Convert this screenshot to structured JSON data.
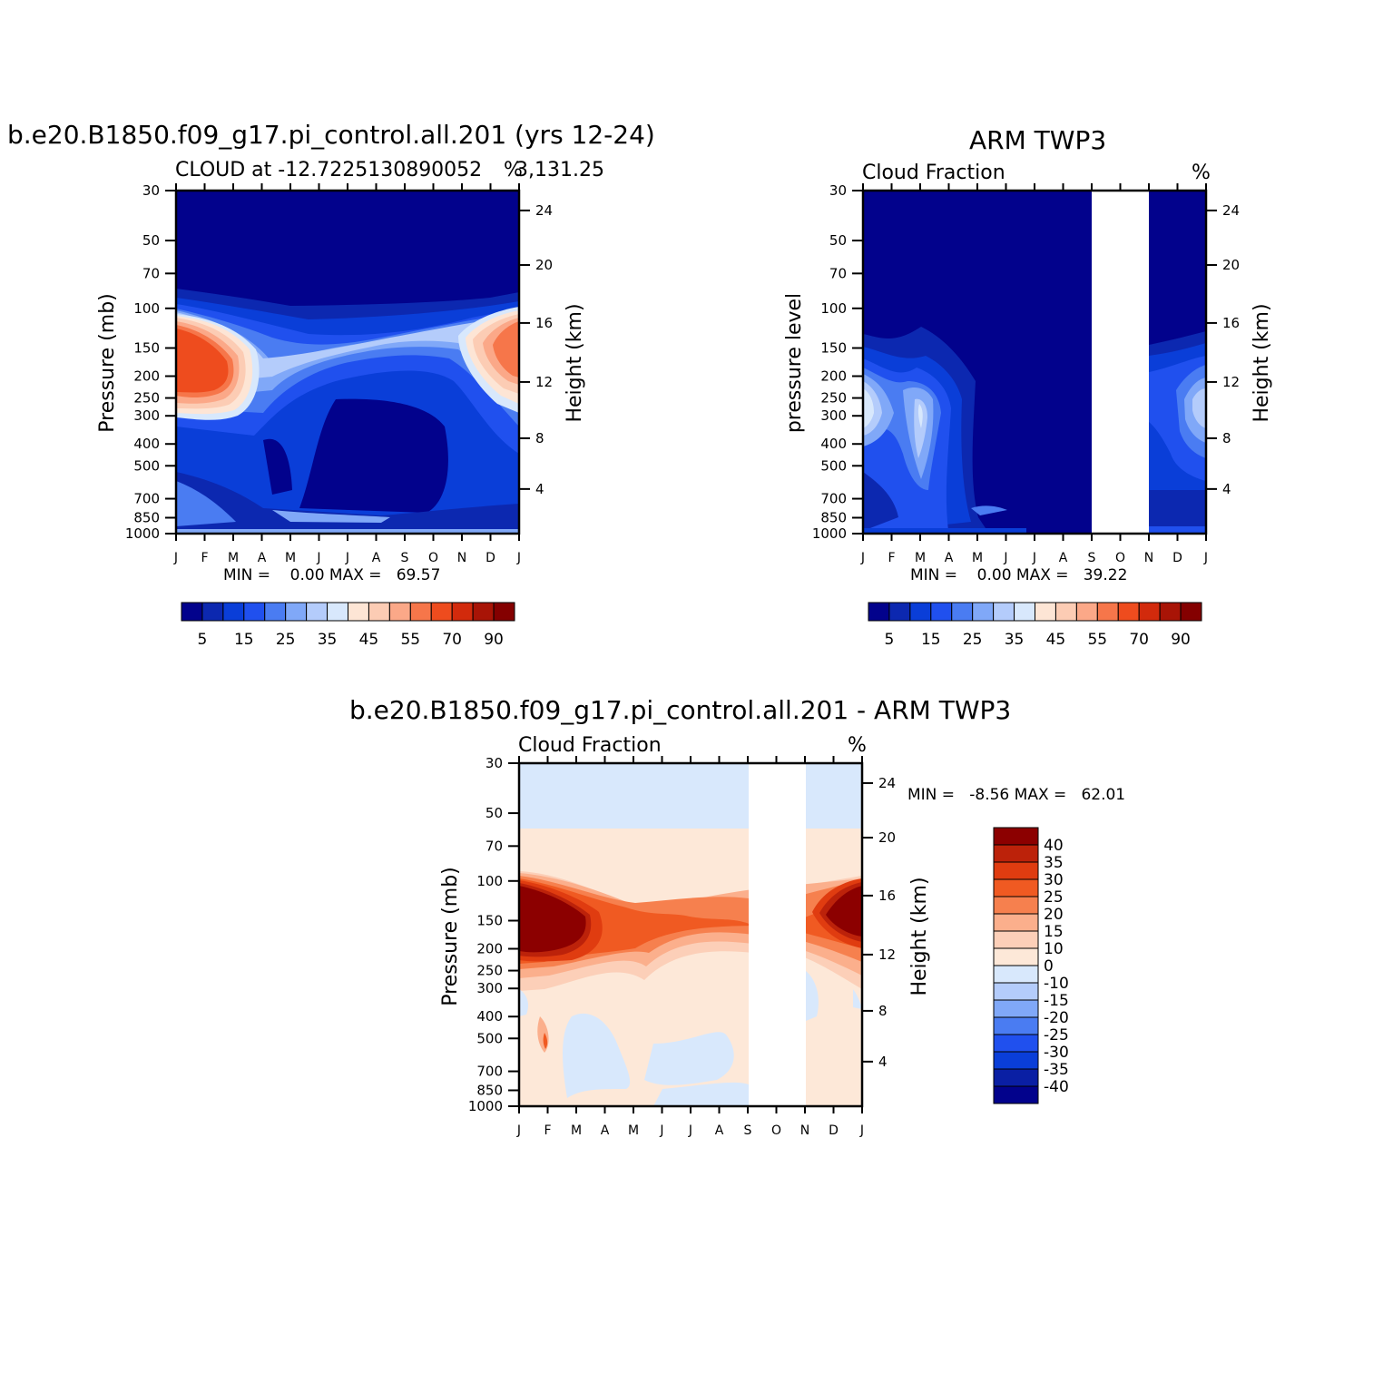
{
  "colors": {
    "seq": [
      "#02028c",
      "#0c28b0",
      "#0a3ed8",
      "#2050ee",
      "#4a7cf2",
      "#80a8f8",
      "#b4ccfb",
      "#d8e8fc",
      "#fde5d5",
      "#fcccb4",
      "#fba888",
      "#f6764a",
      "#ee4c1e",
      "#d22a0c",
      "#a81406",
      "#840000"
    ],
    "diff": [
      "#02028c",
      "#0a1fa4",
      "#0a3ed8",
      "#2050ee",
      "#4a7cf2",
      "#80a8f8",
      "#b4ccfb",
      "#d8e8fc",
      "#fde8d8",
      "#fccfb8",
      "#fbaf8c",
      "#f6804e",
      "#f05a22",
      "#e03c10",
      "#bc220a",
      "#8c0000"
    ]
  },
  "common": {
    "months": [
      "J",
      "F",
      "M",
      "A",
      "M",
      "J",
      "J",
      "A",
      "S",
      "O",
      "N",
      "D",
      "J"
    ],
    "pressure_ticks": [
      "30",
      "50",
      "70",
      "100",
      "150",
      "200",
      "250",
      "300",
      "400",
      "500",
      "700",
      "850",
      "1000"
    ],
    "height_ticks": [
      "24",
      "20",
      "16",
      "12",
      "8",
      "4"
    ]
  },
  "panel_model": {
    "main_title": "b.e20.B1850.f09_g17.pi_control.all.201 (yrs 12-24)",
    "sub_title": "CLOUD at -12.7225130890052",
    "sub_title_tail": "3,131.25",
    "units": "%",
    "ylabel_left": "Pressure (mb)",
    "ylabel_right": "Height (km)",
    "stats": "MIN =    0.00 MAX =   69.57",
    "colorbar_labels": [
      "5",
      "15",
      "25",
      "35",
      "45",
      "55",
      "70",
      "90"
    ]
  },
  "panel_obs": {
    "main_title": "ARM TWP3",
    "sub_title": "Cloud Fraction",
    "units": "%",
    "ylabel_left": "pressure level",
    "ylabel_right": "Height (km)",
    "stats": "MIN =    0.00 MAX =   39.22",
    "colorbar_labels": [
      "5",
      "15",
      "25",
      "35",
      "45",
      "55",
      "70",
      "90"
    ]
  },
  "panel_diff": {
    "main_title": "b.e20.B1850.f09_g17.pi_control.all.201 - ARM TWP3",
    "sub_title": "Cloud Fraction",
    "units": "%",
    "ylabel_left": "Pressure (mb)",
    "ylabel_right": "Height (km)",
    "stats": "MIN =   -8.56 MAX =   62.01",
    "colorbar_labels": [
      "40",
      "35",
      "30",
      "25",
      "20",
      "15",
      "10",
      "0",
      "-10",
      "-15",
      "-20",
      "-25",
      "-30",
      "-35",
      "-40"
    ]
  },
  "chart_data": [
    {
      "type": "heatmap",
      "title": "b.e20.B1850.f09_g17.pi_control.all.201 (yrs 12-24)",
      "subtitle": "CLOUD at -12.72251308900523,131.25",
      "x": [
        "J",
        "F",
        "M",
        "A",
        "M",
        "J",
        "J",
        "A",
        "S",
        "O",
        "N",
        "D",
        "J"
      ],
      "y_pressure_mb": [
        30,
        50,
        70,
        100,
        150,
        200,
        250,
        300,
        400,
        500,
        700,
        850,
        1000
      ],
      "ylabel": "Pressure (mb)",
      "ylabel_right": "Height (km)",
      "min": 0.0,
      "max": 69.57,
      "levels": [
        5,
        10,
        15,
        20,
        25,
        30,
        35,
        40,
        45,
        50,
        55,
        60,
        70,
        80,
        90
      ]
    },
    {
      "type": "heatmap",
      "title": "ARM TWP3",
      "subtitle": "Cloud Fraction",
      "x": [
        "J",
        "F",
        "M",
        "A",
        "M",
        "J",
        "J",
        "A",
        "S",
        "O",
        "N",
        "D",
        "J"
      ],
      "y_pressure_mb": [
        30,
        50,
        70,
        100,
        150,
        200,
        250,
        300,
        400,
        500,
        700,
        850,
        1000
      ],
      "ylabel": "pressure level",
      "ylabel_right": "Height (km)",
      "min": 0.0,
      "max": 39.22,
      "missing_months": [
        "S-N"
      ],
      "levels": [
        5,
        10,
        15,
        20,
        25,
        30,
        35,
        40,
        45,
        50,
        55,
        60,
        70,
        80,
        90
      ]
    },
    {
      "type": "heatmap",
      "title": "b.e20.B1850.f09_g17.pi_control.all.201 - ARM TWP3",
      "subtitle": "Cloud Fraction",
      "x": [
        "J",
        "F",
        "M",
        "A",
        "M",
        "J",
        "J",
        "A",
        "S",
        "O",
        "N",
        "D",
        "J"
      ],
      "y_pressure_mb": [
        30,
        50,
        70,
        100,
        150,
        200,
        250,
        300,
        400,
        500,
        700,
        850,
        1000
      ],
      "ylabel": "Pressure (mb)",
      "ylabel_right": "Height (km)",
      "min": -8.56,
      "max": 62.01,
      "missing_months": [
        "S-N"
      ],
      "levels": [
        -40,
        -35,
        -30,
        -25,
        -20,
        -15,
        -10,
        0,
        10,
        15,
        20,
        25,
        30,
        35,
        40
      ]
    }
  ]
}
